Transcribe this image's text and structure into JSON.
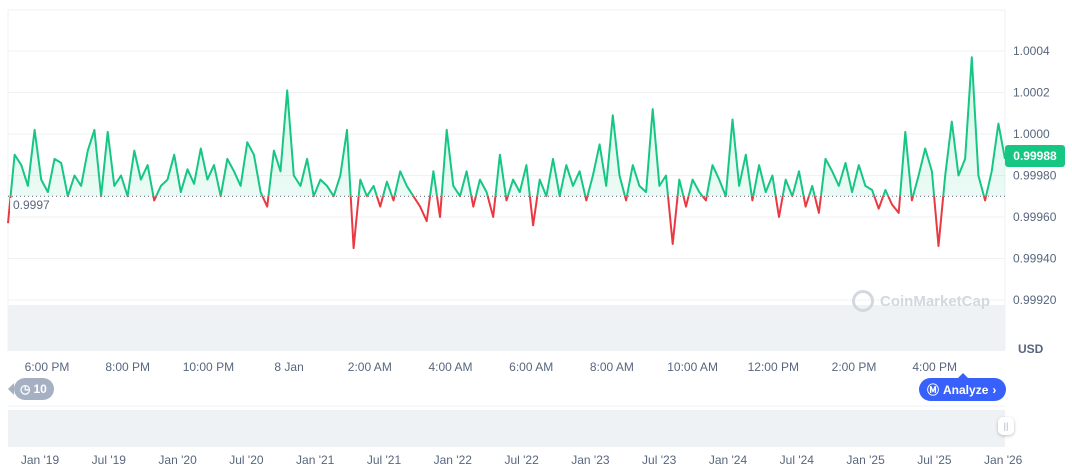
{
  "chart_data": {
    "type": "line",
    "title": "",
    "currency": "USD",
    "current_price": "0.99988",
    "baseline": 0.9997,
    "baseline_label": "0.9997",
    "ylim": [
      0.9991,
      1.0005
    ],
    "y_ticks": [
      1.0004,
      1.0002,
      1.0,
      0.9998,
      0.9996,
      0.9994,
      0.9992
    ],
    "y_tick_labels": [
      "1.0004",
      "1.0002",
      "1.0000",
      "0.99980",
      "0.99960",
      "0.99940",
      "0.99920"
    ],
    "x_tick_labels": [
      "6:00 PM",
      "8:00 PM",
      "10:00 PM",
      "8 Jan",
      "2:00 AM",
      "4:00 AM",
      "6:00 AM",
      "8:00 AM",
      "10:00 AM",
      "12:00 PM",
      "2:00 PM",
      "4:00 PM"
    ],
    "navigator_labels": [
      "Jan '19",
      "Jul '19",
      "Jan '20",
      "Jul '20",
      "Jan '21",
      "Jul '21",
      "Jan '22",
      "Jul '22",
      "Jan '23",
      "Jul '23",
      "Jan '24",
      "Jul '24",
      "Jan '25",
      "Jul '25",
      "Jan '26"
    ],
    "values": [
      0.99957,
      0.9999,
      0.99985,
      0.99975,
      1.00002,
      0.99978,
      0.99972,
      0.99988,
      0.99986,
      0.9997,
      0.9998,
      0.99975,
      0.99992,
      1.00002,
      0.9997,
      1.00001,
      0.99975,
      0.9998,
      0.9997,
      0.99992,
      0.99978,
      0.99985,
      0.99968,
      0.99975,
      0.99978,
      0.9999,
      0.99972,
      0.99983,
      0.99976,
      0.99993,
      0.99978,
      0.99985,
      0.9997,
      0.99988,
      0.99982,
      0.99975,
      0.99996,
      0.9999,
      0.99972,
      0.99965,
      0.99992,
      0.99982,
      1.00021,
      0.9998,
      0.99975,
      0.99988,
      0.9997,
      0.99978,
      0.99975,
      0.9997,
      0.9998,
      1.00002,
      0.99945,
      0.99978,
      0.9997,
      0.99975,
      0.99965,
      0.99977,
      0.99968,
      0.99982,
      0.99975,
      0.9997,
      0.99965,
      0.99958,
      0.99982,
      0.9996,
      1.00002,
      0.99975,
      0.9997,
      0.99982,
      0.99965,
      0.99978,
      0.99972,
      0.9996,
      0.9999,
      0.99968,
      0.99978,
      0.99972,
      0.99985,
      0.99956,
      0.99978,
      0.9997,
      0.99988,
      0.9997,
      0.99985,
      0.99975,
      0.99982,
      0.99968,
      0.9998,
      0.99995,
      0.99975,
      1.00009,
      0.9998,
      0.99968,
      0.99985,
      0.99975,
      0.99972,
      1.00012,
      0.99975,
      0.9998,
      0.99947,
      0.99978,
      0.99965,
      0.99978,
      0.99972,
      0.99968,
      0.99985,
      0.99978,
      0.9997,
      1.00007,
      0.99975,
      0.9999,
      0.99968,
      0.99985,
      0.99972,
      0.9998,
      0.9996,
      0.99978,
      0.9997,
      0.99982,
      0.99965,
      0.99975,
      0.99962,
      0.99988,
      0.99982,
      0.99975,
      0.99986,
      0.99972,
      0.99985,
      0.99975,
      0.99973,
      0.99964,
      0.99973,
      0.99966,
      0.99962,
      1.00001,
      0.99968,
      0.9998,
      0.99993,
      0.99982,
      0.99946,
      0.9998,
      1.00006,
      0.9998,
      0.99988,
      1.00037,
      0.9998,
      0.99968,
      0.99982,
      1.00005,
      0.99988
    ],
    "up_color": "#16c784",
    "down_color": "#ea3943"
  },
  "controls": {
    "history_count": "10",
    "analyze_label": "Analyze",
    "watermark": "CoinMarketCap",
    "currency_label": "USD"
  }
}
